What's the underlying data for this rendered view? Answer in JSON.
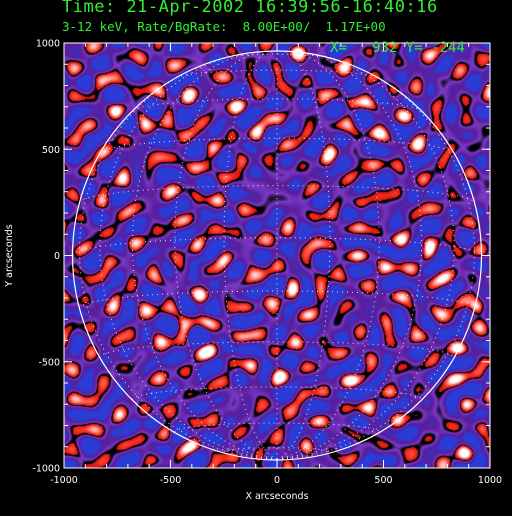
{
  "header": {
    "title": "Time: 21-Apr-2002 16:39:56-16:40:16",
    "subtitle": "3-12 keV, Rate/BgRate:  8.00E+00/  1.17E+00"
  },
  "cursor_readout": {
    "x": "932",
    "y": "-244",
    "label": "X=   932 Y= -244"
  },
  "axes": {
    "xlabel": "X arcseconds",
    "ylabel": "Y arcseconds",
    "xlim": [
      -1000,
      1000
    ],
    "ylim": [
      -1000,
      1000
    ],
    "xticks": [
      "-1000",
      "-500",
      "0",
      "500",
      "1000"
    ],
    "yticks": [
      "1000",
      "500",
      "0",
      "-500",
      "-1000"
    ]
  },
  "image": {
    "colormap": [
      "#000000",
      "#5a1e9a",
      "#7a3ac8",
      "#2b3bd6",
      "#d01010",
      "#ff3a2a",
      "#ffffff"
    ],
    "limb_radius_arcsec": 960,
    "grid": "heliographic 15deg dotted",
    "bright_source": {
      "x": 932,
      "y": -244
    }
  }
}
